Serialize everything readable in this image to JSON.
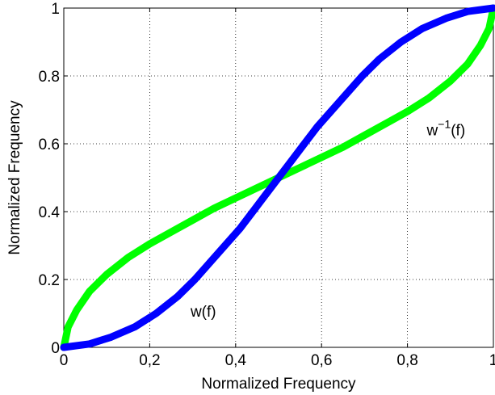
{
  "chart_data": {
    "type": "line",
    "title": "",
    "xlabel": "Normalized Frequency",
    "ylabel": "Normalized Frequency",
    "xlim": [
      0,
      1
    ],
    "ylim": [
      0,
      1
    ],
    "grid": true,
    "x_ticks": [
      {
        "value": 0,
        "label": "0"
      },
      {
        "value": 0.2,
        "label": "0,2"
      },
      {
        "value": 0.4,
        "label": "0,4"
      },
      {
        "value": 0.6,
        "label": "0,6"
      },
      {
        "value": 0.8,
        "label": "0,8"
      },
      {
        "value": 1,
        "label": "1"
      }
    ],
    "y_ticks": [
      {
        "value": 0,
        "label": "0"
      },
      {
        "value": 0.2,
        "label": "0.2"
      },
      {
        "value": 0.4,
        "label": "0.4"
      },
      {
        "value": 0.6,
        "label": "0.6"
      },
      {
        "value": 0.8,
        "label": "0.8"
      },
      {
        "value": 1,
        "label": "1"
      }
    ],
    "series": [
      {
        "color": "#00ff00",
        "x": [
          0,
          0.01,
          0.03,
          0.06,
          0.1,
          0.15,
          0.2,
          0.25,
          0.3,
          0.35,
          0.4,
          0.45,
          0.5,
          0.55,
          0.6,
          0.65,
          0.7,
          0.75,
          0.8,
          0.85,
          0.9,
          0.94,
          0.97,
          0.99,
          1
        ],
        "y": [
          0,
          0.06,
          0.11,
          0.165,
          0.215,
          0.265,
          0.305,
          0.34,
          0.375,
          0.41,
          0.44,
          0.47,
          0.5,
          0.53,
          0.56,
          0.59,
          0.625,
          0.66,
          0.695,
          0.735,
          0.785,
          0.835,
          0.89,
          0.94,
          1
        ]
      },
      {
        "color": "#0000ff",
        "x": [
          0,
          0.06,
          0.11,
          0.165,
          0.215,
          0.265,
          0.305,
          0.34,
          0.375,
          0.41,
          0.44,
          0.47,
          0.5,
          0.53,
          0.56,
          0.59,
          0.625,
          0.66,
          0.695,
          0.735,
          0.785,
          0.835,
          0.89,
          0.94,
          1
        ],
        "y": [
          0,
          0.01,
          0.03,
          0.06,
          0.1,
          0.15,
          0.2,
          0.25,
          0.3,
          0.35,
          0.4,
          0.45,
          0.5,
          0.55,
          0.6,
          0.65,
          0.7,
          0.75,
          0.8,
          0.85,
          0.9,
          0.94,
          0.97,
          0.99,
          1
        ]
      }
    ],
    "annotations": [
      {
        "base": "w",
        "sup": "",
        "tail": "(f)",
        "x": 0.295,
        "y": 0.09
      },
      {
        "base": "w",
        "sup": "−1",
        "tail": "(f)",
        "x": 0.845,
        "y": 0.625
      }
    ]
  }
}
